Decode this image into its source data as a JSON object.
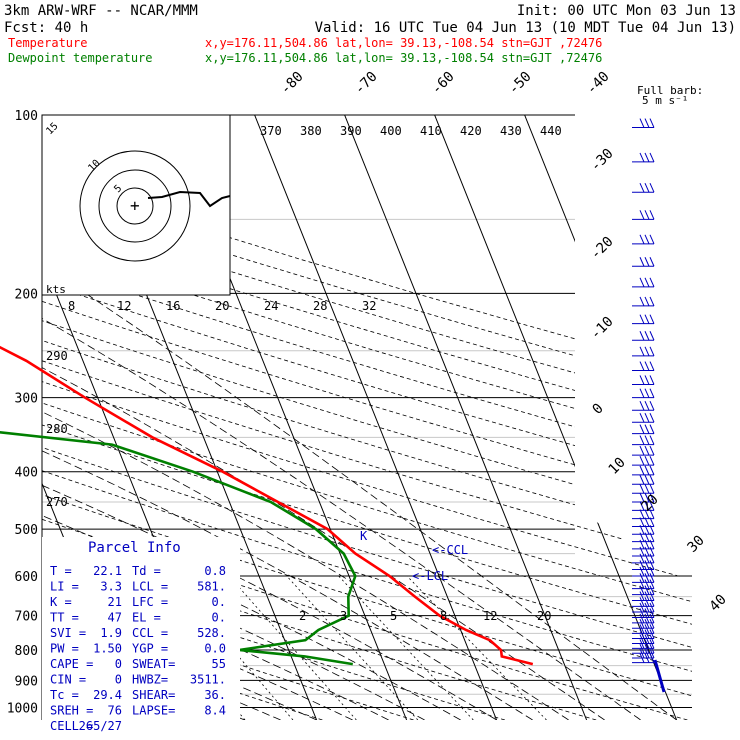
{
  "header": {
    "model": "3km ARW-WRF -- NCAR/MMM",
    "init": "Init: 00 UTC Mon 03 Jun 13",
    "fcst": "Fcst:   40 h",
    "valid": "Valid: 16 UTC Tue 04 Jun 13 (10 MDT Tue 04 Jun 13)",
    "temp_label": "Temperature",
    "temp_loc": "x,y=176.11,504.86   lat,lon= 39.13,-108.54  stn=GJT ,72476",
    "dew_label": "Dewpoint temperature",
    "dew_loc": "x,y=176.11,504.86   lat,lon= 39.13,-108.54  stn=GJT ,72476"
  },
  "barb_legend": {
    "title": "Full barb:",
    "value": "5 m s⁻¹"
  },
  "colors": {
    "temperature": "#ff0000",
    "dewpoint": "#008000",
    "barbs": "#0000c0",
    "hodograph": "#000000"
  },
  "chart_data": {
    "type": "line",
    "subtype": "skew-T log-P diagram",
    "y_axis": {
      "label": "",
      "scale": "log",
      "range_hPa": [
        1000,
        100
      ],
      "ticks": [
        100,
        200,
        300,
        400,
        500,
        600,
        700,
        800,
        900,
        1000
      ]
    },
    "isotherm_labels": [
      "-80",
      "-70",
      "-60",
      "-50",
      "-40",
      "-30",
      "-20",
      "-10",
      "0",
      "10",
      "20",
      "30",
      "40"
    ],
    "theta_e_labels": [
      "370",
      "380",
      "390",
      "400",
      "410",
      "420",
      "430",
      "440"
    ],
    "dry_adiabat_labels": [
      "290",
      "280",
      "270"
    ],
    "mixing_ratio_labels": [
      "2",
      "3",
      "5",
      "8",
      "12",
      "20"
    ],
    "hodograph": {
      "unit": "kts",
      "ring_labels": [
        "5",
        "10",
        "15"
      ],
      "speed_ticks": [
        "8",
        "12",
        "16",
        "20",
        "24",
        "28",
        "32"
      ]
    },
    "lcl_marker": "<-LCL",
    "ccl_marker": "<-CCL",
    "series": [
      {
        "name": "Temperature",
        "points": [
          [
            845,
            26.5
          ],
          [
            820,
            23.4
          ],
          [
            800,
            23.6
          ],
          [
            770,
            22.8
          ],
          [
            740,
            20.6
          ],
          [
            700,
            18.3
          ],
          [
            650,
            16.4
          ],
          [
            600,
            14.5
          ],
          [
            550,
            11.7
          ],
          [
            500,
            9.7
          ],
          [
            450,
            5.4
          ],
          [
            400,
            0.6
          ],
          [
            350,
            -5.7
          ],
          [
            300,
            -11.4
          ],
          [
            260,
            -16.3
          ],
          [
            220,
            -23.7
          ],
          [
            200,
            -26.5
          ],
          [
            180,
            -31.2
          ],
          [
            150,
            -39.7
          ],
          [
            130,
            -45.9
          ],
          [
            115,
            -50.6
          ],
          [
            107,
            -53.6
          ]
        ]
      },
      {
        "name": "Dewpoint temperature",
        "points": [
          [
            845,
            6.5
          ],
          [
            820,
            1.5
          ],
          [
            800,
            -5.5
          ],
          [
            770,
            2.3
          ],
          [
            740,
            4.2
          ],
          [
            700,
            8.2
          ],
          [
            650,
            9.0
          ],
          [
            600,
            10.7
          ],
          [
            550,
            10.4
          ],
          [
            500,
            8.4
          ],
          [
            450,
            4.6
          ],
          [
            400,
            -2.7
          ],
          [
            360,
            -10.5
          ],
          [
            330,
            -32.2
          ],
          [
            310,
            -34.5
          ],
          [
            270,
            -33.1
          ],
          [
            240,
            -35.4
          ],
          [
            200,
            -40.3
          ],
          [
            170,
            -47.0
          ],
          [
            150,
            -52.0
          ],
          [
            130,
            -58.5
          ],
          [
            115,
            -64.0
          ],
          [
            100,
            -69.9
          ]
        ]
      }
    ]
  },
  "parcel_info": {
    "title": "Parcel Info",
    "rows": [
      [
        "T  =",
        "22.1",
        "Td =",
        "0.8"
      ],
      [
        "LI =",
        "3.3",
        "LCL =",
        "581."
      ],
      [
        "K  =",
        "21",
        "LFC =",
        "0."
      ],
      [
        "TT =",
        "47",
        "EL =",
        "0."
      ],
      [
        "SVI =",
        "1.9",
        "CCL =",
        "528."
      ],
      [
        "PW =",
        "1.50",
        "YGP =",
        "0.0"
      ],
      [
        "CAPE =",
        "0",
        "SWEAT=",
        "55"
      ],
      [
        "CIN =",
        "0",
        "HWBZ=",
        "3511."
      ],
      [
        "Tc =",
        "29.4",
        "SHEAR=",
        "36."
      ],
      [
        "SREH =",
        "76",
        "LAPSE=",
        "8.4"
      ],
      [
        "CELL =",
        "265/27",
        "",
        ""
      ]
    ]
  }
}
